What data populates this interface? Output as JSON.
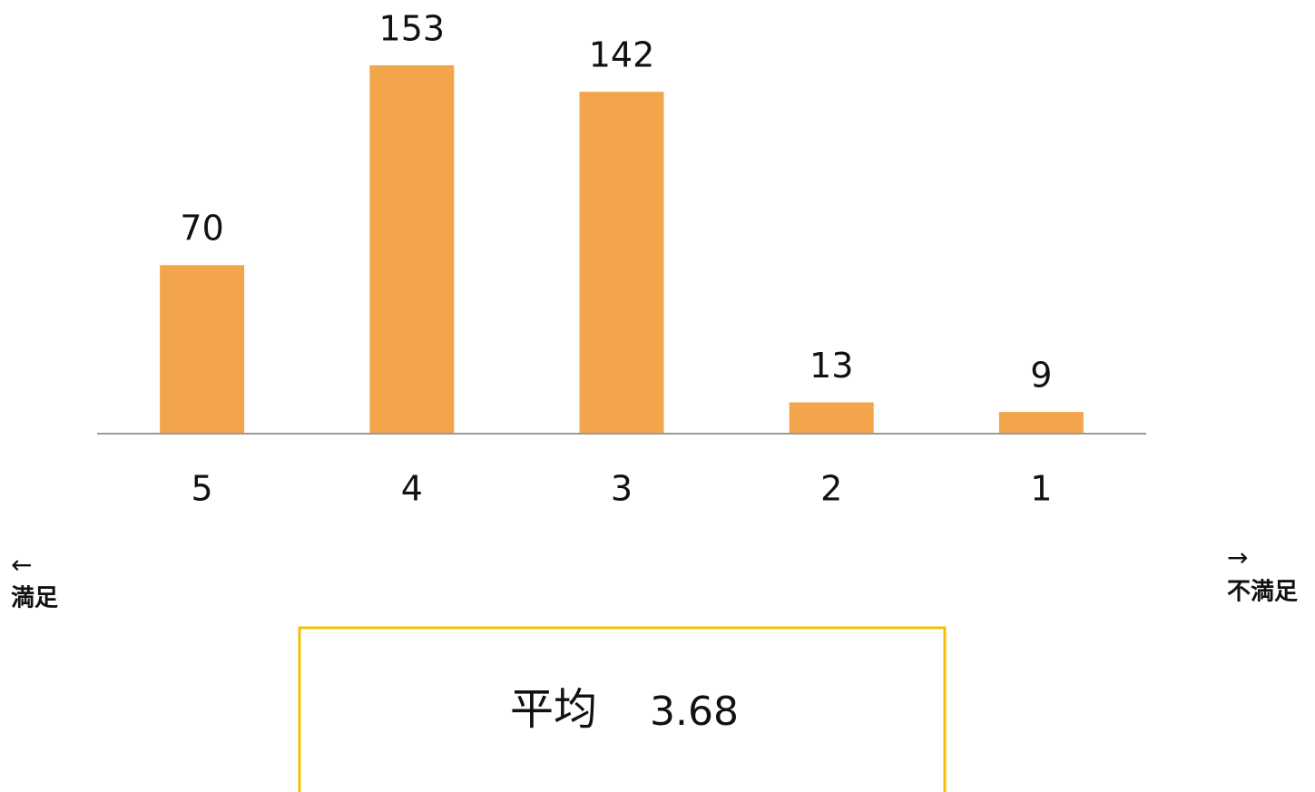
{
  "chart_data": {
    "type": "bar",
    "categories": [
      "5",
      "4",
      "3",
      "2",
      "1"
    ],
    "values": [
      70,
      153,
      142,
      13,
      9
    ],
    "color": "#f2a54a",
    "annotations": {
      "left_arrow": "←",
      "left_label": "満足",
      "right_arrow": "→",
      "right_label": "不満足"
    },
    "average": {
      "label": "平均",
      "value": 3.68
    }
  }
}
